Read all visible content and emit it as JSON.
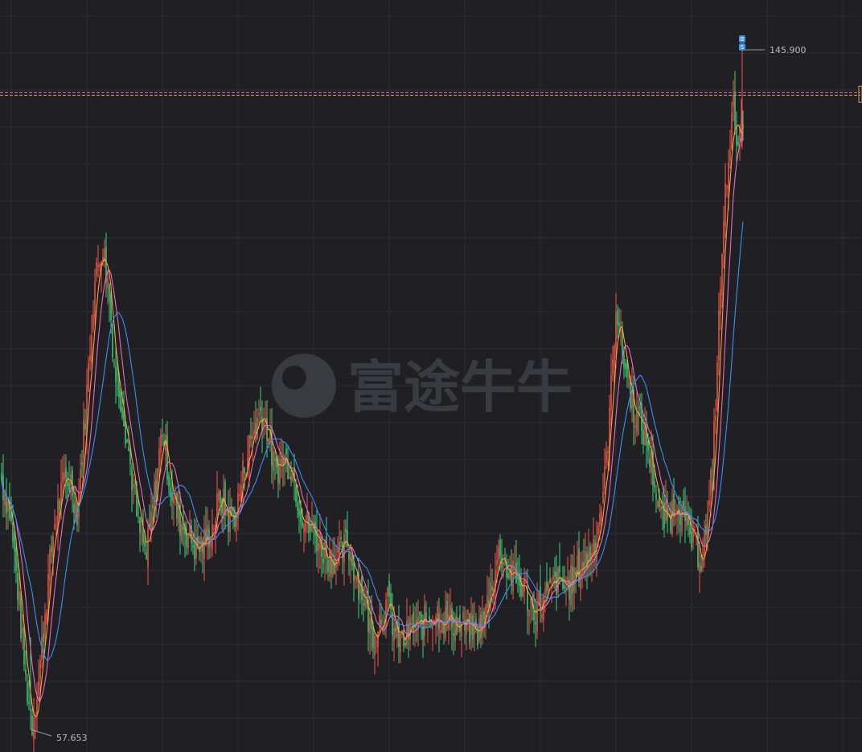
{
  "watermark": {
    "text": "富途牛牛"
  },
  "chart_data": {
    "type": "candlestick",
    "y_range": [
      54.0,
      151.0
    ],
    "high_label": "145.900",
    "low_label": "57.653",
    "high_value": 145.9,
    "low_value": 57.653,
    "reference_lines": [
      140.35,
      140.0
    ],
    "marker_badges": [
      "B",
      "S"
    ],
    "key_levels": [
      [
        0,
        90
      ],
      [
        10,
        86
      ],
      [
        20,
        76
      ],
      [
        30,
        64
      ],
      [
        38,
        58.5
      ],
      [
        46,
        64
      ],
      [
        55,
        74
      ],
      [
        65,
        84
      ],
      [
        78,
        90
      ],
      [
        86,
        90
      ],
      [
        94,
        86
      ],
      [
        105,
        100
      ],
      [
        115,
        115
      ],
      [
        125,
        121
      ],
      [
        133,
        115
      ],
      [
        141,
        104
      ],
      [
        150,
        100
      ],
      [
        160,
        92
      ],
      [
        170,
        84
      ],
      [
        180,
        80
      ],
      [
        190,
        88
      ],
      [
        200,
        97
      ],
      [
        210,
        89
      ],
      [
        220,
        85
      ],
      [
        232,
        83
      ],
      [
        242,
        81
      ],
      [
        252,
        82
      ],
      [
        262,
        84
      ],
      [
        272,
        88
      ],
      [
        282,
        85
      ],
      [
        292,
        86
      ],
      [
        302,
        92
      ],
      [
        312,
        96
      ],
      [
        322,
        99
      ],
      [
        330,
        97
      ],
      [
        340,
        91
      ],
      [
        350,
        93
      ],
      [
        360,
        92
      ],
      [
        370,
        87
      ],
      [
        380,
        84
      ],
      [
        390,
        83
      ],
      [
        400,
        81
      ],
      [
        410,
        80
      ],
      [
        420,
        80
      ],
      [
        430,
        82
      ],
      [
        440,
        78
      ],
      [
        450,
        75
      ],
      [
        460,
        70
      ],
      [
        470,
        72
      ],
      [
        480,
        74
      ],
      [
        490,
        70
      ],
      [
        500,
        69
      ],
      [
        510,
        71
      ],
      [
        520,
        71
      ],
      [
        530,
        72
      ],
      [
        540,
        73
      ],
      [
        550,
        72
      ],
      [
        560,
        72
      ],
      [
        570,
        71
      ],
      [
        580,
        71
      ],
      [
        590,
        70
      ],
      [
        600,
        72
      ],
      [
        610,
        77
      ],
      [
        620,
        81
      ],
      [
        630,
        78
      ],
      [
        640,
        77
      ],
      [
        650,
        76
      ],
      [
        660,
        73
      ],
      [
        670,
        74
      ],
      [
        680,
        75
      ],
      [
        690,
        77
      ],
      [
        700,
        76
      ],
      [
        710,
        77
      ],
      [
        720,
        79
      ],
      [
        730,
        80
      ],
      [
        740,
        83
      ],
      [
        750,
        90
      ],
      [
        757,
        100
      ],
      [
        764,
        113
      ],
      [
        772,
        107
      ],
      [
        780,
        102
      ],
      [
        790,
        98
      ],
      [
        800,
        96
      ],
      [
        810,
        91
      ],
      [
        820,
        85
      ],
      [
        830,
        85
      ],
      [
        840,
        88
      ],
      [
        850,
        84
      ],
      [
        860,
        82
      ],
      [
        870,
        80
      ],
      [
        880,
        86
      ],
      [
        888,
        100
      ],
      [
        895,
        118
      ],
      [
        903,
        132
      ],
      [
        910,
        138
      ],
      [
        917,
        134
      ],
      [
        923,
        136
      ]
    ],
    "moving_averages": [
      {
        "color": "#f4a340",
        "window": 5
      },
      {
        "color": "#e86bc0",
        "window": 10
      },
      {
        "color": "#3d8ef0",
        "window": 20
      }
    ],
    "candle_colors": {
      "up": "#f0564a",
      "down": "#3cd17a"
    }
  }
}
